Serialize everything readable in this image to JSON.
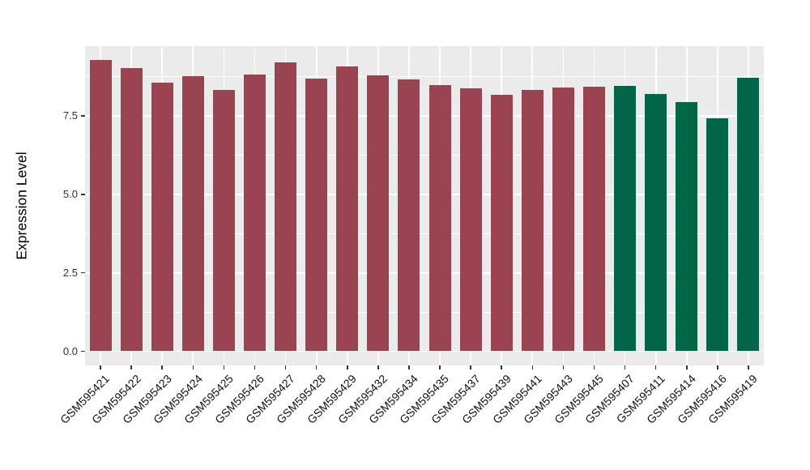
{
  "figure": {
    "background": "#FFFFFF"
  },
  "chart_data": {
    "type": "bar",
    "title": "",
    "xlabel": "",
    "ylabel": "Expression Level",
    "ylim": [
      -0.47,
      9.72
    ],
    "y_ticks_major": [
      0.0,
      2.5,
      5.0,
      7.5
    ],
    "y_ticks_minor": [
      1.25,
      3.75,
      6.25,
      8.75
    ],
    "legend_position": "none",
    "grid": "on",
    "panel_background": "#EBEBEB",
    "gridline_color": "#FFFFFF",
    "tick_color": "#333333",
    "categories": [
      "GSM595421",
      "GSM595422",
      "GSM595423",
      "GSM595424",
      "GSM595425",
      "GSM595426",
      "GSM595427",
      "GSM595428",
      "GSM595429",
      "GSM595432",
      "GSM595434",
      "GSM595435",
      "GSM595437",
      "GSM595439",
      "GSM595441",
      "GSM595443",
      "GSM595445",
      "GSM595407",
      "GSM595411",
      "GSM595414",
      "GSM595416",
      "GSM595419"
    ],
    "values": [
      9.27,
      9.02,
      8.57,
      8.77,
      8.33,
      8.83,
      9.21,
      8.69,
      9.08,
      8.79,
      8.67,
      8.48,
      8.37,
      8.18,
      8.33,
      8.4,
      8.43,
      8.46,
      8.21,
      7.95,
      7.43,
      8.71
    ],
    "groups": [
      "maroon",
      "maroon",
      "maroon",
      "maroon",
      "maroon",
      "maroon",
      "maroon",
      "maroon",
      "maroon",
      "maroon",
      "maroon",
      "maroon",
      "maroon",
      "maroon",
      "maroon",
      "maroon",
      "maroon",
      "green",
      "green",
      "green",
      "green",
      "green"
    ],
    "group_colors": {
      "maroon": "#9B4451",
      "green": "#016647"
    }
  }
}
